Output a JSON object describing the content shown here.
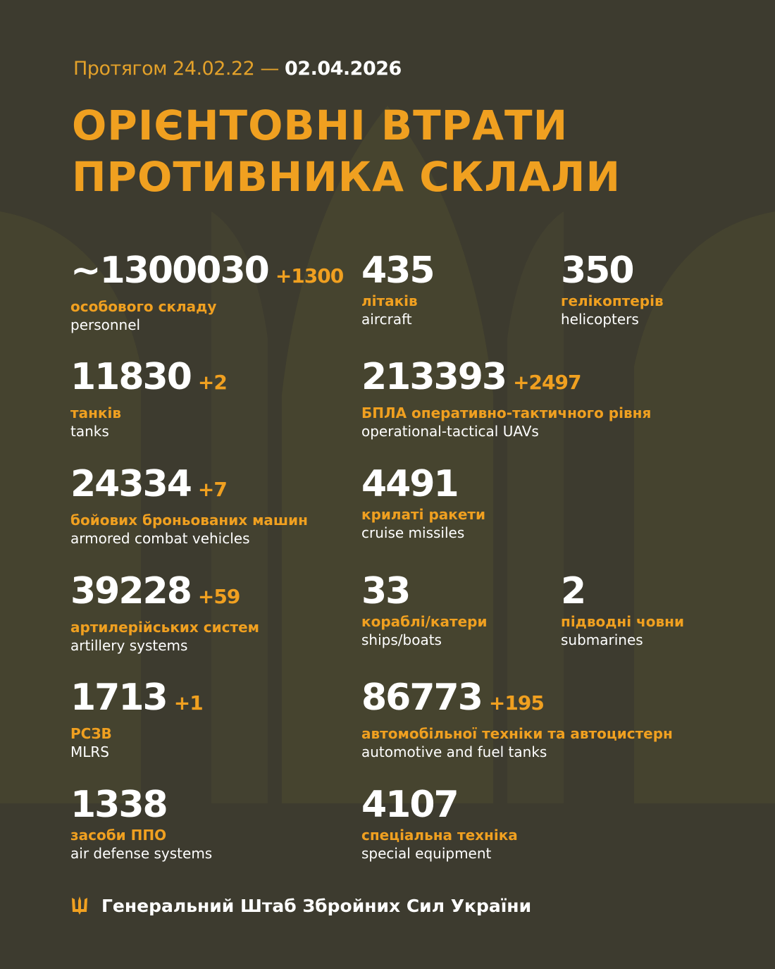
{
  "header": {
    "period_prefix": "Протягом 24.02.22 —",
    "period_end": "02.04.2026",
    "title_line1": "ОРІЄНТОВНІ ВТРАТИ",
    "title_line2": "ПРОТИВНИКА СКЛАЛИ"
  },
  "stats": [
    {
      "value": "~1300030",
      "delta": "+1300",
      "ua": "особового складу",
      "en": "personnel"
    },
    {
      "value": "435",
      "delta": "",
      "ua": "літаків",
      "en": "aircraft"
    },
    {
      "value": "350",
      "delta": "",
      "ua": "гелікоптерів",
      "en": "helicopters"
    },
    {
      "value": "11830",
      "delta": "+2",
      "ua": "танків",
      "en": "tanks"
    },
    {
      "value": "213393",
      "delta": "+2497",
      "ua": "БПЛА оперативно-тактичного рівня",
      "en": "operational-tactical UAVs"
    },
    {
      "value": "24334",
      "delta": "+7",
      "ua": "бойових броньованих машин",
      "en": "armored combat vehicles"
    },
    {
      "value": "4491",
      "delta": "",
      "ua": "крилаті ракети",
      "en": "cruise missiles"
    },
    {
      "value": "39228",
      "delta": "+59",
      "ua": "артилерійських систем",
      "en": "artillery systems"
    },
    {
      "value": "33",
      "delta": "",
      "ua": "кораблі/катери",
      "en": "ships/boats"
    },
    {
      "value": "2",
      "delta": "",
      "ua": "підводні човни",
      "en": "submarines"
    },
    {
      "value": "1713",
      "delta": "+1",
      "ua": "РСЗВ",
      "en": "MLRS"
    },
    {
      "value": "86773",
      "delta": "+195",
      "ua": "автомобільної техніки та автоцистерн",
      "en": "automotive and fuel tanks"
    },
    {
      "value": "1338",
      "delta": "",
      "ua": "засоби ППО",
      "en": "air defense systems"
    },
    {
      "value": "4107",
      "delta": "",
      "ua": "спеціальна техніка",
      "en": "special equipment"
    }
  ],
  "footer": {
    "icon": "trident-icon",
    "text": "Генеральний Штаб Збройних Сил України"
  },
  "colors": {
    "background": "#3d3b2f",
    "accent": "#f0a020",
    "text": "#ffffff"
  }
}
